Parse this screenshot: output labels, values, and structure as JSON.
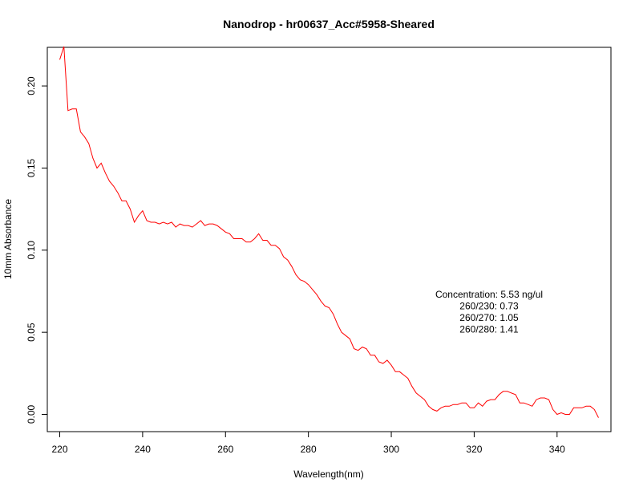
{
  "chart_data": {
    "type": "line",
    "title": "Nanodrop - hr00637_Acc#5958-Sheared",
    "xlabel": "Wavelength(nm)",
    "ylabel": "10mm Absorbance",
    "xlim": [
      217,
      353
    ],
    "ylim": [
      -0.0105,
      0.2235
    ],
    "x_ticks": [
      220,
      240,
      260,
      280,
      300,
      320,
      340
    ],
    "y_ticks": [
      0.0,
      0.05,
      0.1,
      0.15,
      0.2
    ],
    "x_tick_labels": [
      "220",
      "240",
      "260",
      "280",
      "300",
      "320",
      "340"
    ],
    "y_tick_labels": [
      "0.00",
      "0.05",
      "0.10",
      "0.15",
      "0.20"
    ],
    "grid": false,
    "line_color": "#ff0000",
    "annotations": [
      "Concentration: 5.53 ng/ul",
      "260/230: 0.73",
      "260/270: 1.05",
      "260/280: 1.41"
    ],
    "series": [
      {
        "x": [
          220,
          221,
          222,
          223,
          224,
          225,
          226,
          227,
          228,
          229,
          230,
          231,
          232,
          233,
          234,
          235,
          236,
          237,
          238,
          239,
          240,
          241,
          242,
          243,
          244,
          245,
          246,
          247,
          248,
          249,
          250,
          251,
          252,
          253,
          254,
          255,
          256,
          257,
          258,
          259,
          260,
          261,
          262,
          263,
          264,
          265,
          266,
          267,
          268,
          269,
          270,
          271,
          272,
          273,
          274,
          275,
          276,
          277,
          278,
          279,
          280,
          281,
          282,
          283,
          284,
          285,
          286,
          287,
          288,
          289,
          290,
          291,
          292,
          293,
          294,
          295,
          296,
          297,
          298,
          299,
          300,
          301,
          302,
          303,
          304,
          305,
          306,
          307,
          308,
          309,
          310,
          311,
          312,
          313,
          314,
          315,
          316,
          317,
          318,
          319,
          320,
          321,
          322,
          323,
          324,
          325,
          326,
          327,
          328,
          329,
          330,
          331,
          332,
          333,
          334,
          335,
          336,
          337,
          338,
          339,
          340,
          341,
          342,
          343,
          344,
          345,
          346,
          347,
          348,
          349,
          350
        ],
        "y": [
          0.216,
          0.224,
          0.185,
          0.186,
          0.186,
          0.172,
          0.169,
          0.165,
          0.156,
          0.15,
          0.153,
          0.147,
          0.142,
          0.139,
          0.135,
          0.13,
          0.13,
          0.125,
          0.117,
          0.121,
          0.124,
          0.118,
          0.117,
          0.117,
          0.116,
          0.117,
          0.116,
          0.117,
          0.114,
          0.116,
          0.115,
          0.115,
          0.114,
          0.116,
          0.118,
          0.115,
          0.116,
          0.116,
          0.115,
          0.113,
          0.111,
          0.11,
          0.107,
          0.107,
          0.107,
          0.105,
          0.105,
          0.107,
          0.11,
          0.106,
          0.106,
          0.103,
          0.103,
          0.101,
          0.096,
          0.094,
          0.09,
          0.085,
          0.082,
          0.081,
          0.079,
          0.076,
          0.073,
          0.069,
          0.066,
          0.065,
          0.061,
          0.055,
          0.05,
          0.048,
          0.046,
          0.04,
          0.039,
          0.041,
          0.04,
          0.036,
          0.036,
          0.032,
          0.031,
          0.033,
          0.03,
          0.026,
          0.026,
          0.024,
          0.022,
          0.017,
          0.013,
          0.011,
          0.009,
          0.005,
          0.003,
          0.002,
          0.004,
          0.005,
          0.005,
          0.006,
          0.006,
          0.007,
          0.007,
          0.004,
          0.004,
          0.007,
          0.005,
          0.008,
          0.009,
          0.009,
          0.012,
          0.014,
          0.014,
          0.013,
          0.012,
          0.007,
          0.007,
          0.006,
          0.005,
          0.009,
          0.01,
          0.01,
          0.009,
          0.003,
          0.0,
          0.001,
          0.0,
          0.0,
          0.004,
          0.004,
          0.004,
          0.005,
          0.005,
          0.003,
          -0.002
        ]
      }
    ]
  }
}
